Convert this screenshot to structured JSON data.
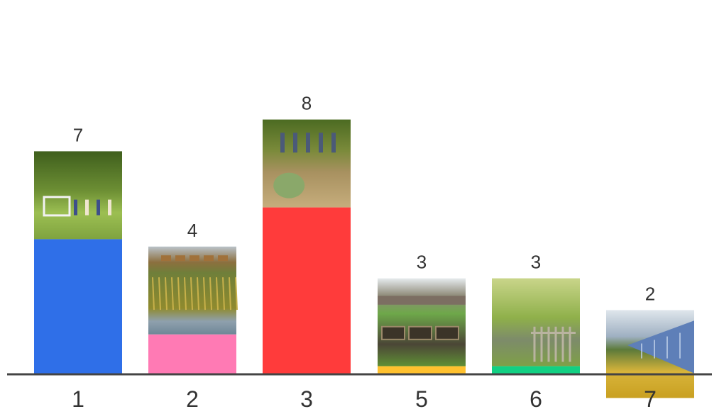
{
  "chart_data": {
    "type": "bar",
    "categories": [
      "1",
      "2",
      "3",
      "5",
      "6",
      "7"
    ],
    "values": [
      7,
      4,
      8,
      3,
      3,
      2
    ],
    "colors": [
      "#2f6fe8",
      "#ff7ab4",
      "#ff3b3b",
      "#ffc12e",
      "#12d083",
      "#9a9cf2"
    ],
    "picture_scenes": [
      "soccer-field",
      "wetland-reeds",
      "hillside-planting",
      "raised-garden-beds",
      "orchard-with-gate",
      "solar-panels-meadow"
    ],
    "title": "",
    "xlabel": "",
    "ylabel": "",
    "ylim": [
      0,
      8
    ],
    "grid": false,
    "legend": "none"
  }
}
